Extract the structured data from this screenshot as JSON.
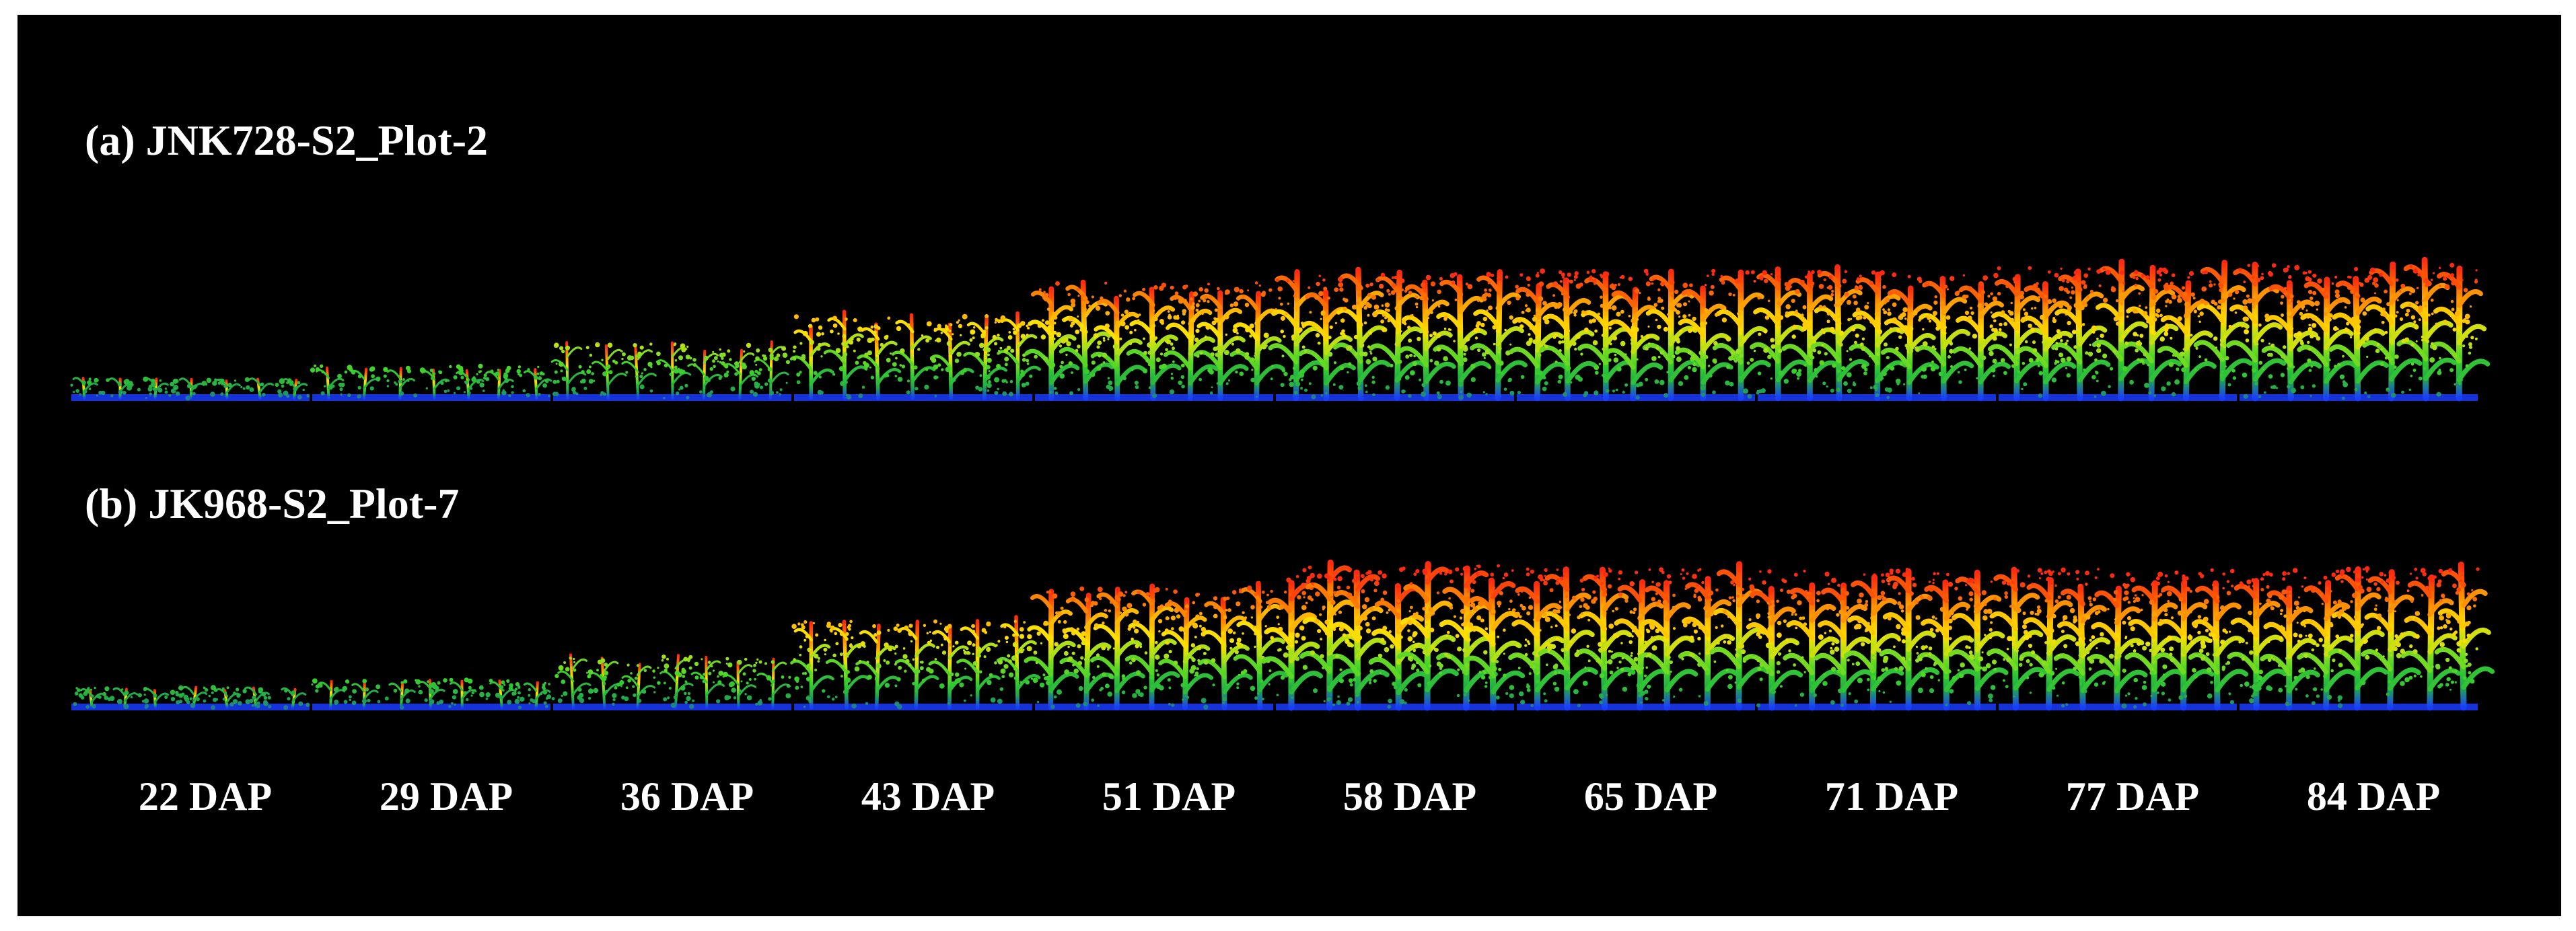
{
  "figure": {
    "background": "#000000",
    "frame_color": "#ffffff",
    "rows": [
      {
        "label": "(a) JNK728-S2_Plot-2",
        "heights": [
          0.13,
          0.22,
          0.37,
          0.56,
          0.78,
          0.84,
          0.86,
          0.86,
          0.88,
          0.9
        ]
      },
      {
        "label": "(b) JK968-S2_Plot-7",
        "heights": [
          0.13,
          0.18,
          0.33,
          0.56,
          0.78,
          0.92,
          0.9,
          0.9,
          0.9,
          0.9
        ]
      }
    ],
    "time_points": [
      "22 DAP",
      "29 DAP",
      "36 DAP",
      "43 DAP",
      "51 DAP",
      "58 DAP",
      "65 DAP",
      "71 DAP",
      "77 DAP",
      "84 DAP"
    ],
    "colormap": [
      "#1a3cff",
      "#1fa84a",
      "#39d22a",
      "#9be01c",
      "#ffe000",
      "#ffb000",
      "#ff6a00",
      "#ff2a10"
    ]
  }
}
